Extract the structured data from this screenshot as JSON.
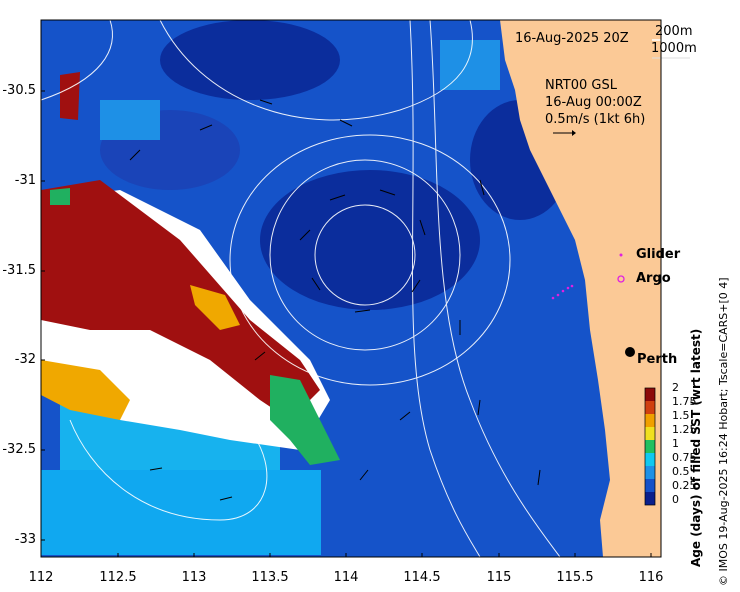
{
  "map": {
    "date_label": "16-Aug-2025 20Z",
    "contour_legend": [
      "200m",
      "1000m"
    ],
    "current_block": {
      "model": "NRT00 GSL",
      "time": "16-Aug 00:00Z",
      "scale": "0.5m/s (1kt 6h)"
    },
    "legend": {
      "glider": "Glider",
      "argo": "Argo",
      "glider_color": "#e020e0",
      "argo_color": "#e020e0"
    },
    "city": "Perth",
    "y_ticks": [
      "-30.5",
      "-31",
      "-31.5",
      "-32",
      "-32.5",
      "-33"
    ],
    "x_ticks": [
      "112",
      "112.5",
      "113",
      "113.5",
      "114",
      "114.5",
      "115",
      "115.5",
      "116"
    ],
    "colorbar": {
      "ticks": [
        "2",
        "1.75",
        "1.5",
        "1.25",
        "1",
        "0.75",
        "0.5",
        "0.25",
        "0"
      ],
      "title": "Age (days) of filled SST (wrt latest)",
      "colors": [
        "#0a1f8c",
        "#1450c8",
        "#1e90e6",
        "#10c8f0",
        "#20c060",
        "#f0e020",
        "#f0a000",
        "#d04010",
        "#8c0a0a"
      ]
    },
    "credit": "© IMOS 19-Aug-2025 16:24 Hobart; Tscale=CARS+[0 4]",
    "land_color": "#fbc996",
    "ocean_color": "#1553c9"
  }
}
